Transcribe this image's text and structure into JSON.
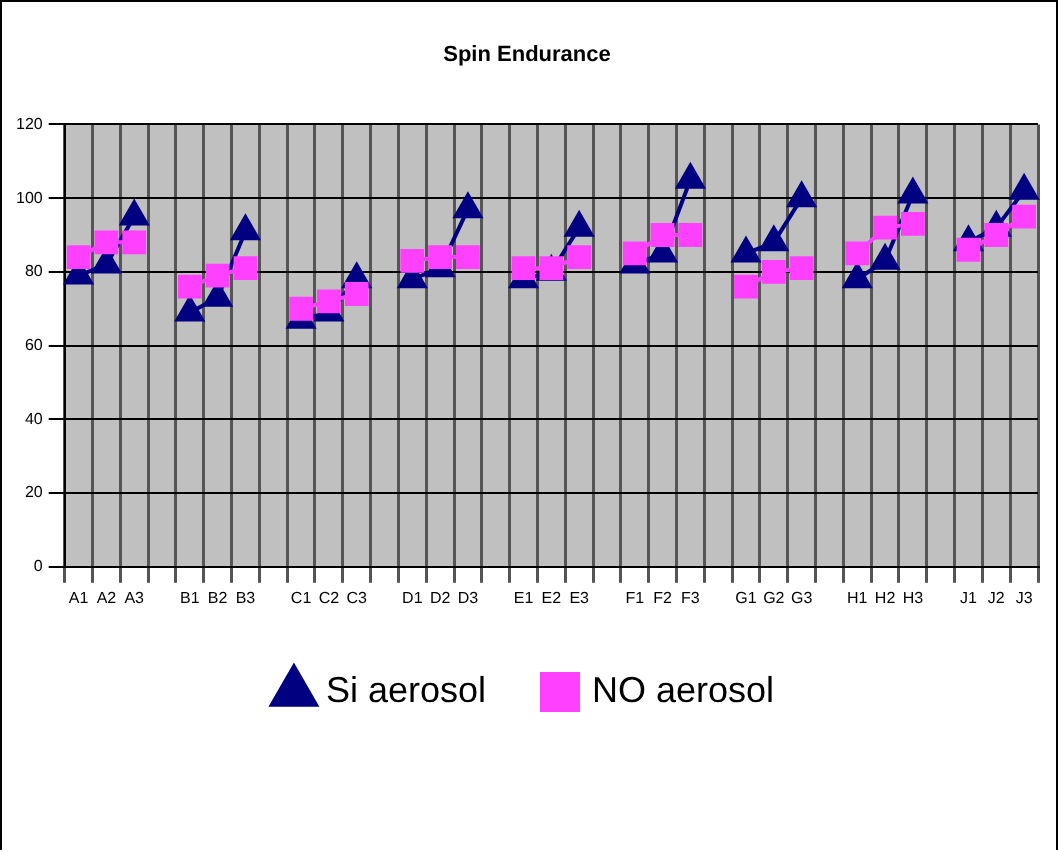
{
  "chart_data": {
    "type": "line",
    "title": "Spin Endurance",
    "categories": [
      "A1",
      "A2",
      "A3",
      null,
      "B1",
      "B2",
      "B3",
      null,
      "C1",
      "C2",
      "C3",
      null,
      "D1",
      "D2",
      "D3",
      null,
      "E1",
      "E2",
      "E3",
      null,
      "F1",
      "F2",
      "F3",
      null,
      "G1",
      "G2",
      "G3",
      null,
      "H1",
      "H2",
      "H3",
      null,
      "J1",
      "J2",
      "J3"
    ],
    "series": [
      {
        "name": "Si aerosol",
        "color": "#000080",
        "marker": "triangle",
        "values": [
          79,
          82,
          95,
          null,
          69,
          73,
          91,
          null,
          67,
          69,
          78,
          null,
          78,
          81,
          97,
          null,
          78,
          80,
          92,
          null,
          82,
          85,
          105,
          null,
          85,
          88,
          100,
          null,
          78,
          83,
          101,
          null,
          88,
          92,
          102
        ]
      },
      {
        "name": "NO aerosol",
        "color": "#ff40ff",
        "marker": "square",
        "values": [
          84,
          88,
          88,
          null,
          76,
          79,
          81,
          null,
          70,
          72,
          74,
          null,
          83,
          84,
          84,
          null,
          81,
          81,
          84,
          null,
          85,
          90,
          90,
          null,
          76,
          80,
          81,
          null,
          85,
          92,
          93,
          null,
          86,
          90,
          95
        ]
      }
    ],
    "ylim": [
      0,
      120
    ],
    "yticks": [
      0,
      20,
      40,
      60,
      80,
      100,
      120
    ],
    "grid": true,
    "legend": "bottom"
  }
}
